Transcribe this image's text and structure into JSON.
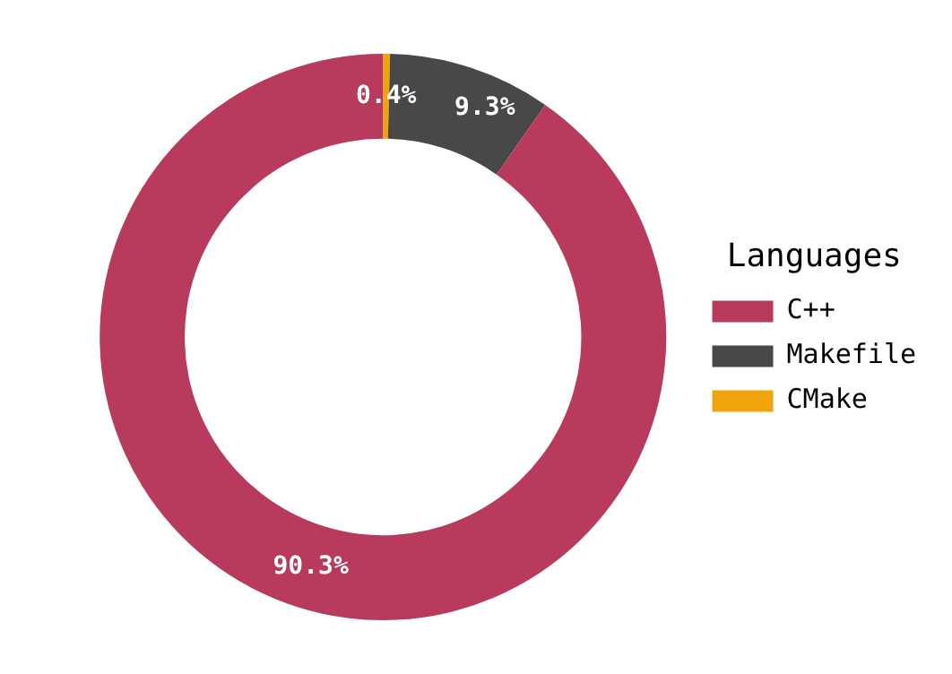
{
  "chart_data": {
    "type": "donut",
    "legend_title": "Languages",
    "legend": "right",
    "categories": [
      "C++",
      "Makefile",
      "CMake"
    ],
    "values": [
      90.3,
      9.3,
      0.4
    ],
    "colors": [
      "#b83a5c",
      "#484848",
      "#f0a30a"
    ],
    "value_labels": [
      "90.3%",
      "9.3%",
      "0.4%"
    ]
  }
}
